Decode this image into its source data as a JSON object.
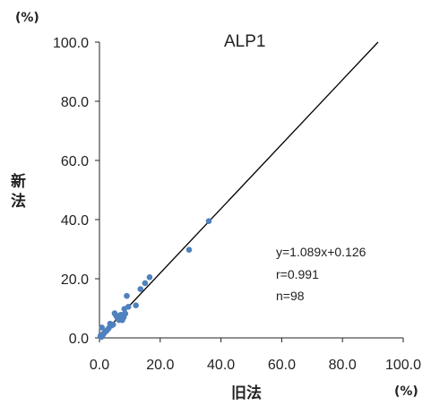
{
  "chart_data": {
    "type": "scatter",
    "title": "ALP1",
    "xlabel": "旧法",
    "ylabel_chars": [
      "新",
      "法"
    ],
    "x_unit": "(%)",
    "y_unit": "(%)",
    "xlim": [
      0,
      100
    ],
    "ylim": [
      0,
      100
    ],
    "x_ticks": [
      "0.0",
      "20.0",
      "40.0",
      "60.0",
      "80.0",
      "100.0"
    ],
    "y_ticks": [
      "0.0",
      "20.0",
      "40.0",
      "60.0",
      "80.0",
      "100.0"
    ],
    "regression": {
      "slope": 1.089,
      "intercept": 0.126
    },
    "annotations": [
      "y=1.089x+0.126",
      "r=0.991",
      "n=98"
    ],
    "point_color": "#4f81bd",
    "points": [
      [
        0.3,
        0.5
      ],
      [
        0.5,
        1.0
      ],
      [
        0.6,
        0.3
      ],
      [
        0.8,
        3.5
      ],
      [
        1.0,
        0.8
      ],
      [
        1.2,
        1.2
      ],
      [
        1.5,
        1.6
      ],
      [
        2.0,
        2.1
      ],
      [
        2.5,
        2.6
      ],
      [
        3.0,
        3.2
      ],
      [
        3.5,
        4.8
      ],
      [
        4.0,
        4.2
      ],
      [
        4.5,
        4.5
      ],
      [
        5.0,
        8.3
      ],
      [
        5.5,
        7.5
      ],
      [
        6.0,
        6.5
      ],
      [
        6.5,
        6.0
      ],
      [
        7.0,
        7.8
      ],
      [
        7.5,
        6.0
      ],
      [
        8.0,
        7.0
      ],
      [
        8.2,
        9.8
      ],
      [
        8.5,
        8.2
      ],
      [
        9.0,
        14.2
      ],
      [
        9.5,
        10.5
      ],
      [
        12.0,
        11.0
      ],
      [
        13.5,
        16.5
      ],
      [
        15.0,
        18.5
      ],
      [
        16.5,
        20.5
      ],
      [
        29.5,
        29.8
      ],
      [
        36.0,
        39.5
      ]
    ]
  }
}
